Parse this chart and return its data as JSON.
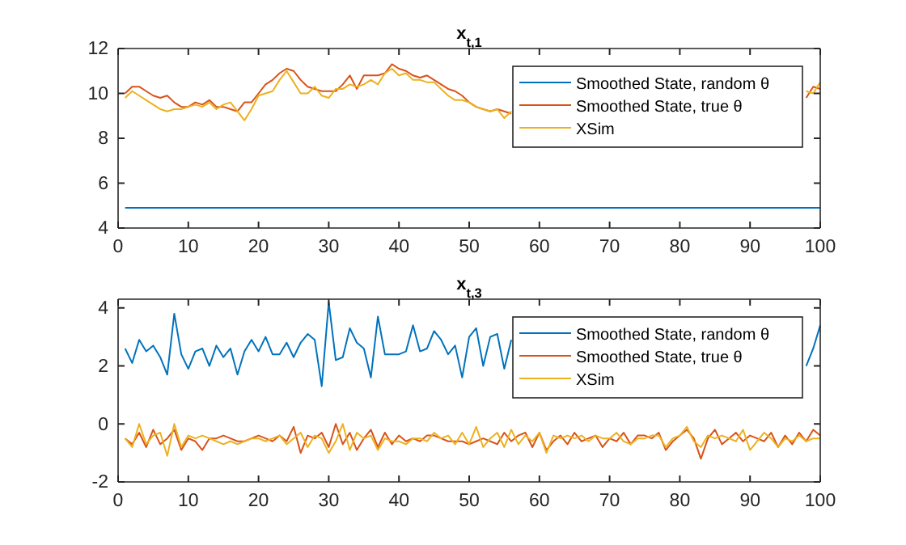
{
  "chart_data": [
    {
      "type": "line",
      "title": "x$_{t,1}$",
      "x": [
        1,
        2,
        3,
        4,
        5,
        6,
        7,
        8,
        9,
        10,
        11,
        12,
        13,
        14,
        15,
        16,
        17,
        18,
        19,
        20,
        21,
        22,
        23,
        24,
        25,
        26,
        27,
        28,
        29,
        30,
        31,
        32,
        33,
        34,
        35,
        36,
        37,
        38,
        39,
        40,
        41,
        42,
        43,
        44,
        45,
        46,
        47,
        48,
        49,
        50,
        51,
        52,
        53,
        54,
        55,
        56,
        57,
        58,
        59,
        60,
        61,
        62,
        63,
        64,
        65,
        66,
        67,
        68,
        69,
        70,
        71,
        72,
        73,
        74,
        75,
        76,
        77,
        78,
        79,
        80,
        81,
        82,
        83,
        84,
        85,
        86,
        87,
        88,
        89,
        90,
        91,
        92,
        93,
        94,
        95,
        96,
        97,
        98,
        99,
        100
      ],
      "xlim": [
        0,
        100
      ],
      "xticks": [
        0,
        10,
        20,
        30,
        40,
        50,
        60,
        70,
        80,
        90,
        100
      ],
      "ylim": [
        4,
        12
      ],
      "yticks": [
        4,
        6,
        8,
        10,
        12
      ],
      "legend": "top right",
      "series": [
        {
          "name": "Smoothed State, random θ",
          "color": "#0072bd",
          "values": [
            4.9,
            4.9,
            4.9,
            4.9,
            4.9,
            4.9,
            4.9,
            4.9,
            4.9,
            4.9,
            4.9,
            4.9,
            4.9,
            4.9,
            4.9,
            4.9,
            4.9,
            4.9,
            4.9,
            4.9,
            4.9,
            4.9,
            4.9,
            4.9,
            4.9,
            4.9,
            4.9,
            4.9,
            4.9,
            4.9,
            4.9,
            4.9,
            4.9,
            4.9,
            4.9,
            4.9,
            4.9,
            4.9,
            4.9,
            4.9,
            4.9,
            4.9,
            4.9,
            4.9,
            4.9,
            4.9,
            4.9,
            4.9,
            4.9,
            4.9,
            4.9,
            4.9,
            4.9,
            4.9,
            4.9,
            4.9,
            4.9,
            4.9,
            4.9,
            4.9,
            4.9,
            4.9,
            4.9,
            4.9,
            4.9,
            4.9,
            4.9,
            4.9,
            4.9,
            4.9,
            4.9,
            4.9,
            4.9,
            4.9,
            4.9,
            4.9,
            4.9,
            4.9,
            4.9,
            4.9,
            4.9,
            4.9,
            4.9,
            4.9,
            4.9,
            4.9,
            4.9,
            4.9,
            4.9,
            4.9,
            4.9,
            4.9,
            4.9,
            4.9,
            4.9,
            4.9,
            4.9,
            4.9,
            4.9,
            4.9
          ]
        },
        {
          "name": "Smoothed State, true θ",
          "color": "#d95319",
          "values": [
            10.0,
            10.3,
            10.3,
            10.1,
            9.9,
            9.8,
            9.9,
            9.6,
            9.4,
            9.4,
            9.6,
            9.5,
            9.7,
            9.4,
            9.4,
            9.3,
            9.2,
            9.6,
            9.6,
            10.0,
            10.4,
            10.6,
            10.9,
            11.1,
            11.0,
            10.6,
            10.3,
            10.2,
            10.1,
            10.1,
            10.1,
            10.4,
            10.8,
            10.2,
            10.8,
            10.8,
            10.8,
            10.9,
            11.3,
            11.1,
            11.0,
            10.8,
            10.7,
            10.8,
            10.6,
            10.4,
            10.2,
            10.1,
            9.9,
            9.6,
            9.4,
            9.3,
            9.2,
            9.3,
            9.2,
            9.1,
            null,
            null,
            null,
            null,
            null,
            null,
            null,
            null,
            null,
            null,
            null,
            null,
            null,
            null,
            null,
            null,
            null,
            null,
            null,
            null,
            null,
            null,
            null,
            null,
            null,
            null,
            null,
            null,
            null,
            null,
            null,
            null,
            null,
            null,
            null,
            null,
            null,
            null,
            null,
            null,
            null,
            9.8,
            10.3,
            10.2
          ]
        },
        {
          "name": "XSim",
          "color": "#edb120",
          "values": [
            9.8,
            10.1,
            9.9,
            9.7,
            9.5,
            9.3,
            9.2,
            9.3,
            9.3,
            9.4,
            9.5,
            9.4,
            9.6,
            9.3,
            9.5,
            9.6,
            9.2,
            8.8,
            9.3,
            9.9,
            10.0,
            10.1,
            10.6,
            11.0,
            10.5,
            10.0,
            10.0,
            10.3,
            9.9,
            9.8,
            10.2,
            10.2,
            10.4,
            10.3,
            10.4,
            10.6,
            10.4,
            10.9,
            11.1,
            10.8,
            10.9,
            10.6,
            10.6,
            10.5,
            10.5,
            10.2,
            9.9,
            9.7,
            9.7,
            9.6,
            9.4,
            9.3,
            9.2,
            9.3,
            8.9,
            9.2,
            null,
            null,
            null,
            null,
            null,
            null,
            null,
            null,
            null,
            null,
            null,
            null,
            null,
            null,
            null,
            null,
            null,
            null,
            null,
            null,
            null,
            null,
            null,
            null,
            null,
            null,
            null,
            null,
            null,
            null,
            null,
            null,
            null,
            null,
            null,
            null,
            null,
            null,
            null,
            null,
            null,
            10.1,
            10.0,
            10.5
          ]
        }
      ]
    },
    {
      "type": "line",
      "title": "x$_{t,3}$",
      "x": [
        1,
        2,
        3,
        4,
        5,
        6,
        7,
        8,
        9,
        10,
        11,
        12,
        13,
        14,
        15,
        16,
        17,
        18,
        19,
        20,
        21,
        22,
        23,
        24,
        25,
        26,
        27,
        28,
        29,
        30,
        31,
        32,
        33,
        34,
        35,
        36,
        37,
        38,
        39,
        40,
        41,
        42,
        43,
        44,
        45,
        46,
        47,
        48,
        49,
        50,
        51,
        52,
        53,
        54,
        55,
        56,
        57,
        58,
        59,
        60,
        61,
        62,
        63,
        64,
        65,
        66,
        67,
        68,
        69,
        70,
        71,
        72,
        73,
        74,
        75,
        76,
        77,
        78,
        79,
        80,
        81,
        82,
        83,
        84,
        85,
        86,
        87,
        88,
        89,
        90,
        91,
        92,
        93,
        94,
        95,
        96,
        97,
        98,
        99,
        100
      ],
      "xlim": [
        0,
        100
      ],
      "xticks": [
        0,
        10,
        20,
        30,
        40,
        50,
        60,
        70,
        80,
        90,
        100
      ],
      "ylim": [
        -2,
        4.3
      ],
      "yticks": [
        -2,
        0,
        2,
        4
      ],
      "legend": "top right",
      "series": [
        {
          "name": "Smoothed State, random θ",
          "color": "#0072bd",
          "values": [
            2.6,
            2.1,
            2.9,
            2.5,
            2.7,
            2.3,
            1.7,
            3.8,
            2.4,
            1.9,
            2.5,
            2.6,
            2.0,
            2.7,
            2.3,
            2.6,
            1.7,
            2.5,
            2.9,
            2.5,
            3.0,
            2.4,
            2.4,
            2.8,
            2.3,
            2.8,
            3.1,
            2.9,
            1.3,
            4.2,
            2.2,
            2.3,
            3.3,
            2.8,
            2.6,
            1.6,
            3.7,
            2.4,
            2.4,
            2.4,
            2.5,
            3.4,
            2.5,
            2.6,
            3.2,
            2.9,
            2.4,
            2.7,
            1.6,
            3.0,
            3.3,
            2.0,
            3.0,
            3.1,
            1.9,
            2.9,
            null,
            null,
            null,
            null,
            null,
            null,
            null,
            null,
            null,
            null,
            null,
            null,
            null,
            null,
            null,
            null,
            null,
            null,
            null,
            null,
            null,
            null,
            null,
            null,
            null,
            null,
            null,
            null,
            null,
            null,
            null,
            null,
            null,
            null,
            null,
            null,
            null,
            null,
            null,
            null,
            null,
            2.0,
            2.6,
            3.4
          ]
        },
        {
          "name": "Smoothed State, true θ",
          "color": "#d95319",
          "values": [
            -0.5,
            -0.7,
            -0.3,
            -0.8,
            -0.2,
            -0.7,
            -0.5,
            -0.2,
            -0.9,
            -0.5,
            -0.6,
            -0.9,
            -0.5,
            -0.5,
            -0.4,
            -0.5,
            -0.6,
            -0.6,
            -0.5,
            -0.4,
            -0.5,
            -0.6,
            -0.4,
            -0.6,
            -0.1,
            -1.0,
            -0.4,
            -0.5,
            -0.3,
            -0.8,
            0.0,
            -0.7,
            -0.3,
            -0.9,
            -0.5,
            -0.2,
            -0.8,
            -0.3,
            -0.7,
            -0.4,
            -0.6,
            -0.5,
            -0.6,
            -0.4,
            -0.4,
            -0.5,
            -0.6,
            -0.6,
            -0.6,
            -0.7,
            -0.6,
            -0.5,
            -0.6,
            -0.7,
            -0.3,
            -0.6,
            -0.4,
            -0.3,
            -0.8,
            -0.3,
            -0.9,
            -0.6,
            -0.4,
            -0.7,
            -0.3,
            -0.6,
            -0.5,
            -0.4,
            -0.8,
            -0.5,
            -0.6,
            -0.3,
            -0.7,
            -0.4,
            -0.4,
            -0.5,
            -0.3,
            -0.9,
            -0.6,
            -0.4,
            -0.2,
            -0.5,
            -1.2,
            -0.5,
            -0.2,
            -0.7,
            -0.5,
            -0.3,
            -0.6,
            -0.4,
            -0.5,
            -0.6,
            -0.3,
            -0.8,
            -0.4,
            -0.7,
            -0.3,
            -0.6,
            -0.2,
            -0.4
          ]
        },
        {
          "name": "XSim",
          "color": "#edb120",
          "values": [
            -0.5,
            -0.8,
            0.0,
            -0.7,
            -0.4,
            -0.3,
            -1.1,
            0.0,
            -0.8,
            -0.4,
            -0.5,
            -0.4,
            -0.5,
            -0.6,
            -0.7,
            -0.6,
            -0.7,
            -0.6,
            -0.5,
            -0.5,
            -0.6,
            -0.5,
            -0.4,
            -0.7,
            -0.5,
            -0.3,
            -0.8,
            -0.4,
            -0.5,
            -1.0,
            -0.6,
            0.0,
            -0.9,
            -0.3,
            -0.5,
            -0.4,
            -0.9,
            -0.5,
            -0.6,
            -0.6,
            -0.7,
            -0.5,
            -0.5,
            -0.6,
            -0.3,
            -0.5,
            -0.4,
            -0.7,
            -0.3,
            -0.7,
            -0.1,
            -0.8,
            -0.5,
            -0.3,
            -0.8,
            -0.2,
            -0.7,
            -0.4,
            -0.6,
            -0.3,
            -1.0,
            -0.4,
            -0.5,
            -0.4,
            -0.5,
            -0.4,
            -0.6,
            -0.4,
            -0.5,
            -0.5,
            -0.3,
            -0.6,
            -0.7,
            -0.5,
            -0.5,
            -0.4,
            -0.4,
            -0.8,
            -0.5,
            -0.4,
            -0.1,
            -0.6,
            -0.8,
            -0.4,
            -0.5,
            -0.4,
            -0.5,
            -0.6,
            -0.2,
            -0.9,
            -0.6,
            -0.3,
            -0.5,
            -0.8,
            -0.5,
            -0.6,
            -0.4,
            -0.6,
            -0.5,
            -0.5
          ]
        }
      ]
    }
  ]
}
